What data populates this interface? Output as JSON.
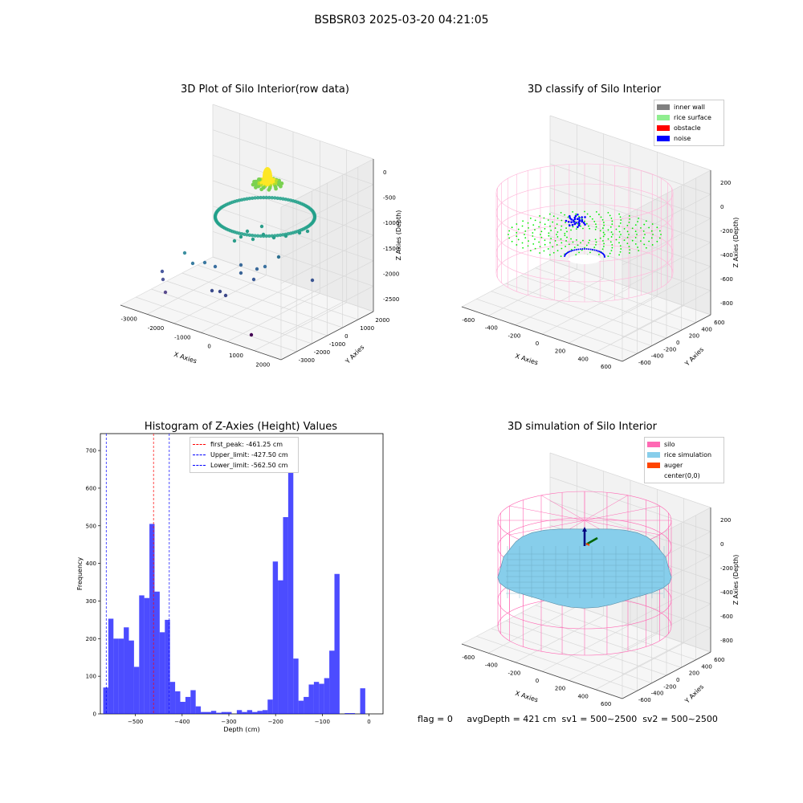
{
  "suptitle": "BSBSR03 2025-03-20 04:21:05",
  "footer": "flag = 0     avgDepth = 421 cm  sv1 = 500~2500  sv2 = 500~2500",
  "chart_data": [
    {
      "type": "scatter",
      "title": "3D Plot of Silo Interior(row data)",
      "xlabel": "X Axies",
      "ylabel": "Y Axies",
      "zlabel": "Z Axies (Depth)",
      "x_ticks": [
        "-3000",
        "-2000",
        "-1000",
        "0",
        "1000",
        "2000"
      ],
      "y_ticks": [
        "2000",
        "1000",
        "0",
        "-1000",
        "-2000",
        "-3000"
      ],
      "z_ticks": [
        "0",
        "-500",
        "-1000",
        "-1500",
        "-2000",
        "-2500"
      ],
      "xlim": [
        -3500,
        2700
      ],
      "ylim": [
        -3500,
        2500
      ],
      "zlim": [
        -2800,
        100
      ],
      "ring": {
        "radius": 650,
        "z": -1000
      },
      "colormap": "viridis"
    },
    {
      "type": "scatter",
      "title": "3D classify of Silo Interior",
      "xlabel": "X Axies",
      "ylabel": "Y Axies",
      "zlabel": "Z Axies (Depth)",
      "x_ticks": [
        "-600",
        "-400",
        "-200",
        "0",
        "200",
        "400",
        "600"
      ],
      "y_ticks": [
        "600",
        "400",
        "200",
        "0",
        "-200",
        "-400",
        "-600"
      ],
      "z_ticks": [
        "200",
        "0",
        "-200",
        "-400",
        "-600",
        "-800"
      ],
      "xlim": [
        -650,
        650
      ],
      "ylim": [
        -650,
        650
      ],
      "zlim": [
        -900,
        250
      ],
      "legend": [
        {
          "label": "inner wall",
          "color": "#808080"
        },
        {
          "label": "rice surface",
          "color": "#90ee90"
        },
        {
          "label": "obstacle",
          "color": "#ff0000"
        },
        {
          "label": "noise",
          "color": "#0000ff"
        }
      ],
      "legend_loc": "upper right"
    },
    {
      "type": "bar",
      "title": "Histogram of Z-Axies (Height) Values",
      "xlabel": "Depth (cm)",
      "ylabel": "Frequency",
      "xlim": [
        -575,
        30
      ],
      "ylim": [
        0,
        745
      ],
      "x_ticks": [
        -500,
        -400,
        -300,
        -200,
        -100,
        0
      ],
      "y_ticks": [
        0,
        100,
        200,
        300,
        400,
        500,
        600,
        700
      ],
      "bin_start": -569,
      "bin_width": 11.0,
      "values": [
        70,
        253,
        200,
        200,
        230,
        195,
        125,
        315,
        308,
        505,
        325,
        217,
        250,
        85,
        60,
        32,
        45,
        63,
        20,
        5,
        5,
        8,
        3,
        5,
        5,
        0,
        10,
        5,
        10,
        5,
        8,
        10,
        38,
        405,
        355,
        523,
        710,
        147,
        35,
        45,
        78,
        85,
        80,
        95,
        168,
        372,
        0,
        2,
        2,
        0,
        68
      ],
      "color": "#0000ff",
      "lines": [
        {
          "label": "first_peak: -461.25 cm",
          "x": -461.25,
          "color": "#ff0000"
        },
        {
          "label": "Upper_limit: -427.50 cm",
          "x": -427.5,
          "color": "#0000ff"
        },
        {
          "label": "Lower_limit: -562.50 cm",
          "x": -562.5,
          "color": "#0000ff"
        }
      ],
      "legend_loc": "upper center"
    },
    {
      "type": "surface",
      "title": "3D simulation of Silo Interior",
      "xlabel": "X Axies",
      "ylabel": "Y Axies",
      "zlabel": "Z Axies (Depth)",
      "x_ticks": [
        "-600",
        "-400",
        "-200",
        "0",
        "200",
        "400",
        "600"
      ],
      "y_ticks": [
        "600",
        "400",
        "200",
        "0",
        "-200",
        "-400",
        "-600"
      ],
      "z_ticks": [
        "200",
        "0",
        "-200",
        "-400",
        "-600",
        "-800"
      ],
      "xlim": [
        -650,
        650
      ],
      "ylim": [
        -650,
        650
      ],
      "zlim": [
        -900,
        250
      ],
      "legend": [
        {
          "label": "silo",
          "color": "#ff69b4"
        },
        {
          "label": "rice simulation",
          "color": "#87ceeb"
        },
        {
          "label": "auger",
          "color": "#ff4500"
        },
        {
          "label": "center(0,0)",
          "color": "#ffffff"
        }
      ],
      "legend_loc": "upper right"
    }
  ]
}
